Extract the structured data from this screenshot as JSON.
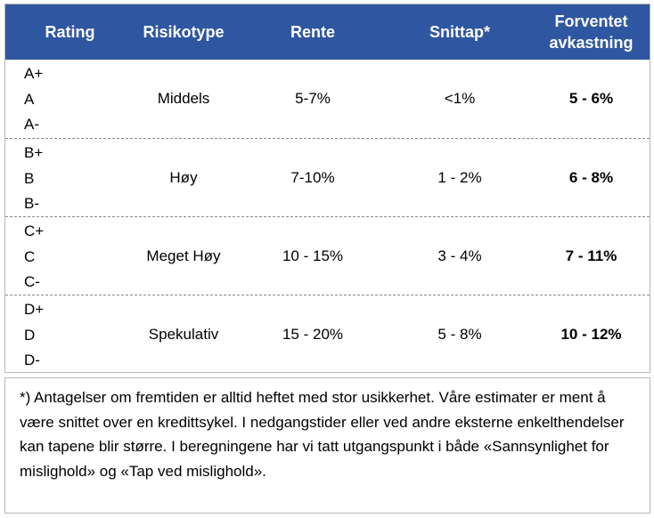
{
  "table": {
    "headers": {
      "rating": "Rating",
      "risikotype": "Risikotype",
      "rente": "Rente",
      "snittap": "Snittap*",
      "forventet": "Forventet avkastning"
    },
    "rows": [
      {
        "ratings": [
          "A+",
          "A",
          "A-"
        ],
        "risikotype": "Middels",
        "rente": "5-7%",
        "snittap": "<1%",
        "forventet": "5 - 6%"
      },
      {
        "ratings": [
          "B+",
          "B",
          "B-"
        ],
        "risikotype": "Høy",
        "rente": "7-10%",
        "snittap": "1 - 2%",
        "forventet": "6 - 8%"
      },
      {
        "ratings": [
          "C+",
          "C",
          "C-"
        ],
        "risikotype": "Meget Høy",
        "rente": "10 - 15%",
        "snittap": "3 - 4%",
        "forventet": "7 - 11%"
      },
      {
        "ratings": [
          "D+",
          "D",
          "D-"
        ],
        "risikotype": "Spekulativ",
        "rente": "15 - 20%",
        "snittap": "5 - 8%",
        "forventet": "10 - 12%"
      }
    ]
  },
  "note": {
    "text": "*)  Antagelser om fremtiden er alltid heftet med stor usikkerhet. Våre estimater er ment å være snittet over en kredittsykel.  I nedgangstider eller ved andre eksterne enkelthendelser kan tapene blir større.  I beregningene har vi tatt utgangspunkt i både «Sannsynlighet for mislighold» og «Tap ved mislighold»."
  },
  "colors": {
    "header_bg": "#2f56a0",
    "header_text": "#ffffff",
    "border": "#b8b8b8",
    "divider": "#8a8a8a"
  }
}
